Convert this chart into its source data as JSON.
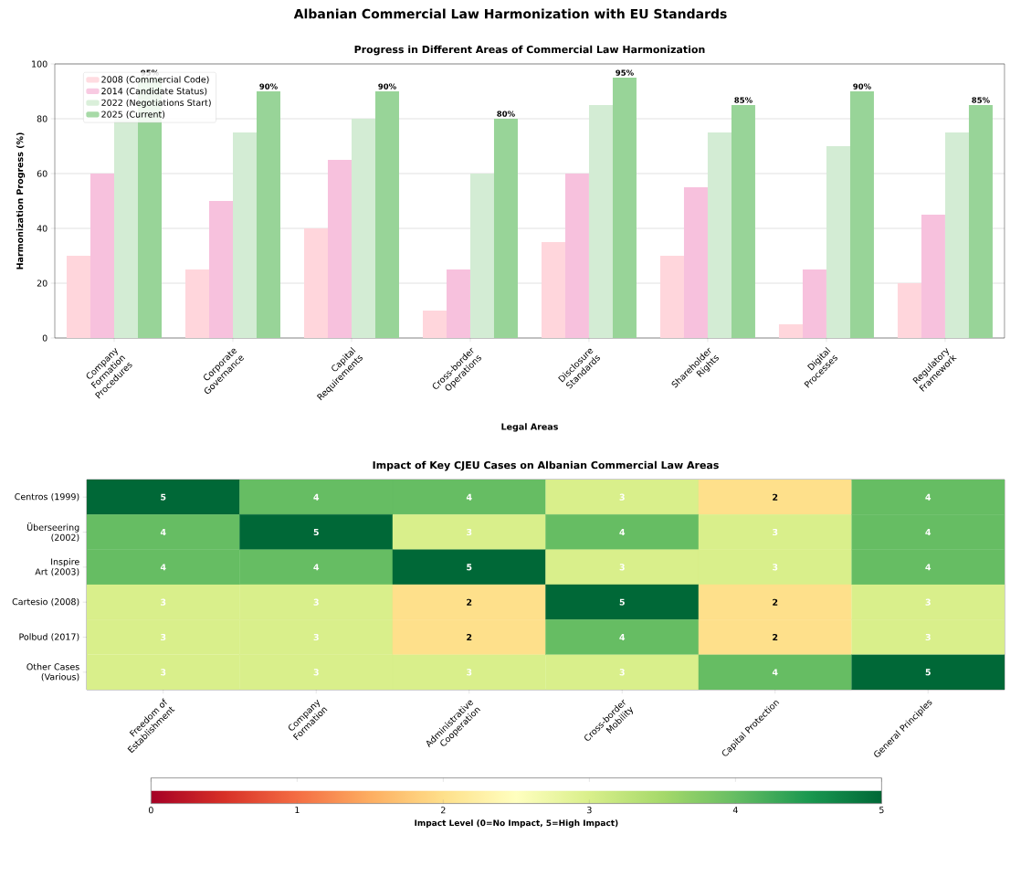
{
  "chart_data": [
    {
      "type": "bar",
      "title": "Albanian Commercial Law Harmonization with EU Standards",
      "subtitle": "Progress in Different Areas of Commercial Law Harmonization",
      "xlabel": "Legal Areas",
      "ylabel": "Harmonization Progress (%)",
      "categories": [
        "Company Formation Procedures",
        "Corporate Governance",
        "Capital Requirements",
        "Cross-border Operations",
        "Disclosure Standards",
        "Shareholder Rights",
        "Digital Processes",
        "Regulatory Framework"
      ],
      "series": [
        {
          "name": "2008 (Commercial Code)",
          "color": "#ffd6dc",
          "values": [
            30,
            25,
            40,
            10,
            35,
            30,
            5,
            20
          ]
        },
        {
          "name": "2014 (Candidate Status)",
          "color": "#f7c1dd",
          "values": [
            60,
            50,
            65,
            25,
            60,
            55,
            25,
            45
          ]
        },
        {
          "name": "2022 (Negotiations Start)",
          "color": "#d3ecd4",
          "values": [
            80,
            75,
            80,
            60,
            85,
            75,
            70,
            75
          ]
        },
        {
          "name": "2025 (Current)",
          "color": "#98d498",
          "values": [
            95,
            90,
            90,
            80,
            95,
            85,
            90,
            85
          ],
          "value_labels": [
            "95%",
            "90%",
            "90%",
            "80%",
            "95%",
            "85%",
            "90%",
            "85%"
          ]
        }
      ],
      "ylim": [
        0,
        100
      ],
      "yticks": [
        0,
        20,
        40,
        60,
        80,
        100
      ],
      "grid": "y",
      "legend": "top left"
    },
    {
      "type": "heatmap",
      "title": "Impact of Key CJEU Cases on Albanian Commercial Law Areas",
      "clabel": "Impact Level (0=No Impact, 5=High Impact)",
      "categories": [
        "Freedom of Establishment",
        "Company Formation",
        "Administrative Cooperation",
        "Cross-border Mobility",
        "Capital Protection",
        "General Principles"
      ],
      "y_categories": [
        "Centros (1999)",
        "Überseering (2002)",
        "Inspire Art (2003)",
        "Cartesio (2008)",
        "Polbud (2017)",
        "Other Cases (Various)"
      ],
      "cells": [
        [
          5,
          4,
          4,
          3,
          2,
          4
        ],
        [
          4,
          5,
          3,
          4,
          3,
          4
        ],
        [
          4,
          4,
          5,
          3,
          3,
          4
        ],
        [
          3,
          3,
          2,
          5,
          2,
          3
        ],
        [
          3,
          3,
          2,
          4,
          2,
          3
        ],
        [
          3,
          3,
          3,
          3,
          4,
          5
        ]
      ],
      "data_labels": true,
      "clim": [
        0,
        5
      ],
      "cticks": [
        0,
        1,
        2,
        3,
        4,
        5
      ]
    }
  ]
}
